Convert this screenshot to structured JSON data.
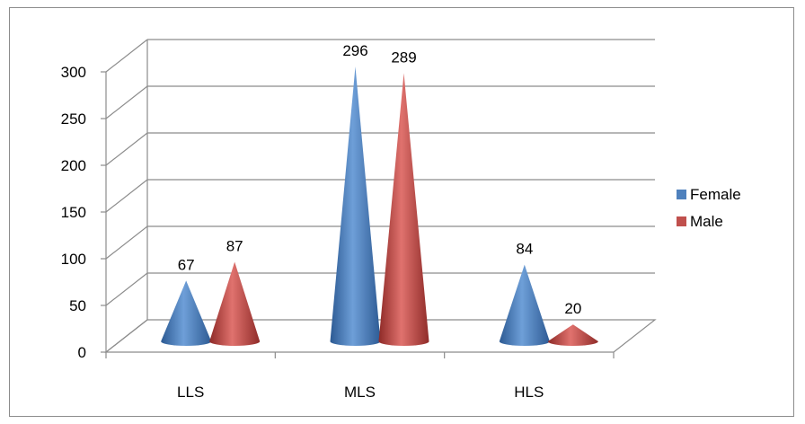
{
  "chart_data": {
    "type": "bar",
    "style": "3d-cone",
    "categories": [
      "LLS",
      "MLS",
      "HLS"
    ],
    "series": [
      {
        "name": "Female",
        "values": [
          67,
          296,
          84
        ],
        "color": "#4f81bd"
      },
      {
        "name": "Male",
        "values": [
          87,
          289,
          20
        ],
        "color": "#c0504d"
      }
    ],
    "yticks": [
      "0",
      "50",
      "100",
      "150",
      "200",
      "250",
      "300"
    ],
    "ylim": [
      0,
      300
    ],
    "grid": true,
    "legend": "right"
  }
}
